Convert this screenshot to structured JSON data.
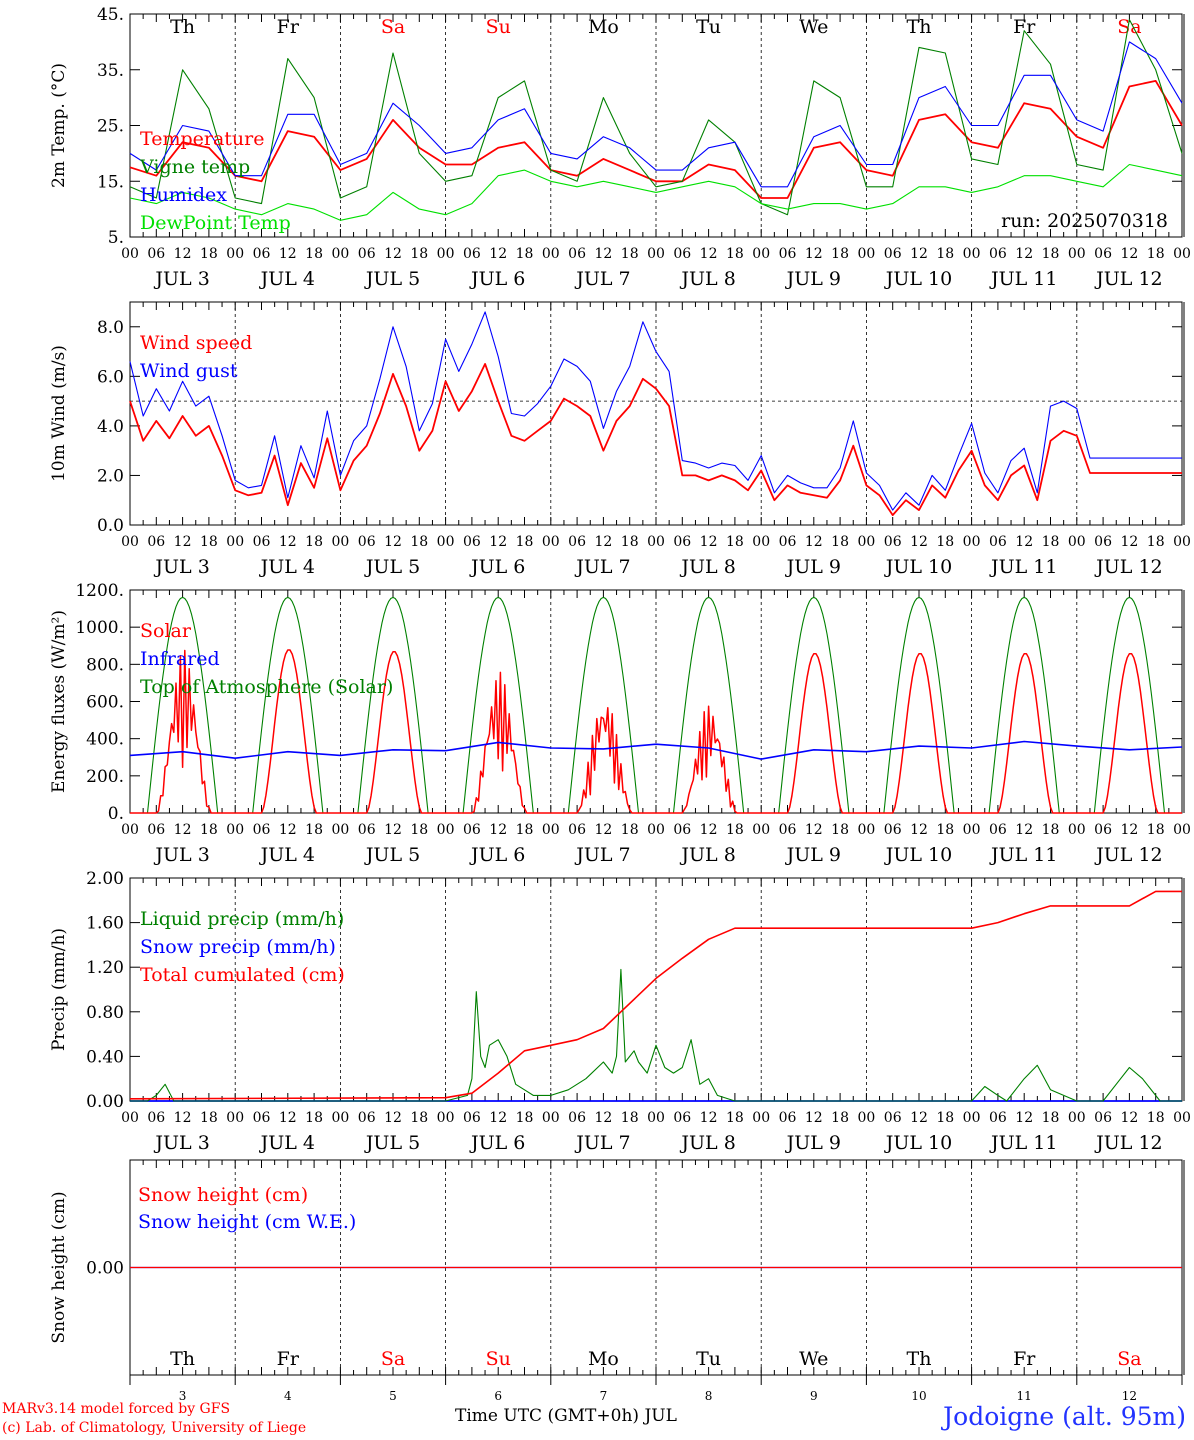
{
  "days": {
    "weekdays": [
      "Th",
      "Fr",
      "Sa",
      "Su",
      "Mo",
      "Tu",
      "We",
      "Th",
      "Fr",
      "Sa"
    ],
    "weekend_flags": [
      false,
      false,
      true,
      true,
      false,
      false,
      false,
      false,
      false,
      true
    ],
    "date_labels": [
      "JUL  3",
      "JUL  4",
      "JUL  5",
      "JUL  6",
      "JUL  7",
      "JUL  8",
      "JUL  9",
      "JUL 10",
      "JUL 11",
      "JUL 12"
    ],
    "day_numbers": [
      "3",
      "4",
      "5",
      "6",
      "7",
      "8",
      "9",
      "10",
      "11",
      "12"
    ],
    "hour_ticks": [
      "00",
      "06",
      "12",
      "18"
    ],
    "last_hour_tick": "00"
  },
  "colors": {
    "red": "#ff0000",
    "blue": "#0000ff",
    "darkgreen": "#008000",
    "lightgreen": "#00e000"
  },
  "chart_data": [
    {
      "type": "line",
      "ylabel": "2m Temp. (°C)",
      "ylim": [
        5,
        45
      ],
      "yticks": [
        "45.",
        "35.",
        "25.",
        "15.",
        "5."
      ],
      "yticks_values": [
        45,
        35,
        25,
        15,
        5
      ],
      "annotation": "run: 2025070318",
      "x_unit": "hours since JUL 3 00 UTC",
      "series": [
        {
          "name": "Temperature",
          "color": "#ff0000",
          "x": [
            0,
            6,
            12,
            18,
            24,
            30,
            36,
            42,
            48,
            54,
            60,
            66,
            72,
            78,
            84,
            90,
            96,
            102,
            108,
            114,
            120,
            126,
            132,
            138,
            144,
            150,
            156,
            162,
            168,
            174,
            180,
            186,
            192,
            198,
            204,
            210,
            216,
            222,
            228,
            234,
            240
          ],
          "y": [
            17.5,
            16,
            22,
            21,
            16,
            15,
            24,
            23,
            17,
            19,
            26,
            21,
            18,
            18,
            21,
            22,
            17,
            16,
            19,
            17,
            15,
            15,
            18,
            17,
            12,
            12,
            21,
            22,
            17,
            16,
            26,
            27,
            22,
            21,
            29,
            28,
            23,
            21,
            32,
            33,
            25
          ]
        },
        {
          "name": "Vigne temp",
          "color": "#008000",
          "x": [
            0,
            6,
            12,
            18,
            24,
            30,
            36,
            42,
            48,
            54,
            60,
            66,
            72,
            78,
            84,
            90,
            96,
            102,
            108,
            114,
            120,
            126,
            132,
            138,
            144,
            150,
            156,
            162,
            168,
            174,
            180,
            186,
            192,
            198,
            204,
            210,
            216,
            222,
            228,
            234,
            240
          ],
          "y": [
            14,
            12,
            35,
            28,
            12,
            11,
            37,
            30,
            12,
            14,
            38,
            20,
            15,
            16,
            30,
            33,
            17,
            15,
            30,
            20,
            14,
            15,
            26,
            22,
            11,
            9,
            33,
            30,
            14,
            14,
            39,
            38,
            19,
            18,
            42,
            36,
            18,
            17,
            44,
            35,
            20
          ]
        },
        {
          "name": "Humidex",
          "color": "#0000ff",
          "x": [
            0,
            6,
            12,
            18,
            24,
            30,
            36,
            42,
            48,
            54,
            60,
            66,
            72,
            78,
            84,
            90,
            96,
            102,
            108,
            114,
            120,
            126,
            132,
            138,
            144,
            150,
            156,
            162,
            168,
            174,
            180,
            186,
            192,
            198,
            204,
            210,
            216,
            222,
            228,
            234,
            240
          ],
          "y": [
            20,
            17,
            25,
            24,
            16,
            16,
            27,
            27,
            18,
            20,
            29,
            25,
            20,
            21,
            26,
            28,
            20,
            19,
            23,
            21,
            17,
            17,
            21,
            22,
            14,
            14,
            23,
            25,
            18,
            18,
            30,
            32,
            25,
            25,
            34,
            34,
            26,
            24,
            40,
            37,
            29
          ]
        },
        {
          "name": "DewPoint Temp",
          "color": "#00e000",
          "x": [
            0,
            6,
            12,
            18,
            24,
            30,
            36,
            42,
            48,
            54,
            60,
            66,
            72,
            78,
            84,
            90,
            96,
            102,
            108,
            114,
            120,
            126,
            132,
            138,
            144,
            150,
            156,
            162,
            168,
            174,
            180,
            186,
            192,
            198,
            204,
            210,
            216,
            222,
            228,
            234,
            240
          ],
          "y": [
            12,
            11,
            13,
            12,
            10,
            9,
            11,
            10,
            8,
            9,
            13,
            10,
            9,
            11,
            16,
            17,
            15,
            14,
            15,
            14,
            13,
            14,
            15,
            14,
            11,
            10,
            11,
            11,
            10,
            11,
            14,
            14,
            13,
            14,
            16,
            16,
            15,
            14,
            18,
            17,
            16
          ]
        }
      ]
    },
    {
      "type": "line",
      "ylabel": "10m Wind (m/s)",
      "ylim": [
        0,
        9
      ],
      "yticks": [
        "8.0",
        "6.0",
        "4.0",
        "2.0",
        "0.0"
      ],
      "yticks_values": [
        8,
        6,
        4,
        2,
        0
      ],
      "reference_line": 5,
      "x_unit": "hours since JUL 3 00 UTC",
      "series": [
        {
          "name": "Wind speed",
          "color": "#ff0000",
          "x": [
            0,
            3,
            6,
            9,
            12,
            15,
            18,
            21,
            24,
            27,
            30,
            33,
            36,
            39,
            42,
            45,
            48,
            51,
            54,
            57,
            60,
            63,
            66,
            69,
            72,
            75,
            78,
            81,
            84,
            87,
            90,
            93,
            96,
            99,
            102,
            105,
            108,
            111,
            114,
            117,
            120,
            123,
            126,
            129,
            132,
            135,
            138,
            141,
            144,
            147,
            150,
            153,
            156,
            159,
            162,
            165,
            168,
            171,
            174,
            177,
            180,
            183,
            186,
            189,
            192,
            195,
            198,
            201,
            204,
            207,
            210,
            213,
            216,
            219,
            222,
            225,
            228,
            231,
            234,
            237,
            240
          ],
          "y": [
            5.0,
            3.4,
            4.2,
            3.5,
            4.4,
            3.6,
            4.0,
            2.8,
            1.4,
            1.2,
            1.3,
            2.8,
            0.8,
            2.5,
            1.5,
            3.5,
            1.4,
            2.6,
            3.2,
            4.5,
            6.1,
            4.8,
            3.0,
            3.8,
            5.8,
            4.6,
            5.4,
            6.5,
            5.0,
            3.6,
            3.4,
            3.8,
            4.2,
            5.1,
            4.8,
            4.4,
            3.0,
            4.2,
            4.8,
            5.9,
            5.5,
            4.8,
            2.0,
            2.0,
            1.8,
            2.0,
            1.8,
            1.4,
            2.2,
            1.0,
            1.6,
            1.3,
            1.2,
            1.1,
            1.8,
            3.2,
            1.6,
            1.2,
            0.4,
            1.0,
            0.6,
            1.6,
            1.1,
            2.2,
            3.0,
            1.6,
            1.0,
            2.0,
            2.4,
            1.0,
            3.4,
            3.8,
            3.6,
            2.1,
            2.1,
            2.1,
            2.1,
            2.1,
            2.1,
            2.1,
            2.1
          ]
        },
        {
          "name": "Wind gust",
          "color": "#0000ff",
          "x": [
            0,
            3,
            6,
            9,
            12,
            15,
            18,
            21,
            24,
            27,
            30,
            33,
            36,
            39,
            42,
            45,
            48,
            51,
            54,
            57,
            60,
            63,
            66,
            69,
            72,
            75,
            78,
            81,
            84,
            87,
            90,
            93,
            96,
            99,
            102,
            105,
            108,
            111,
            114,
            117,
            120,
            123,
            126,
            129,
            132,
            135,
            138,
            141,
            144,
            147,
            150,
            153,
            156,
            159,
            162,
            165,
            168,
            171,
            174,
            177,
            180,
            183,
            186,
            189,
            192,
            195,
            198,
            201,
            204,
            207,
            210,
            213,
            216,
            219,
            222,
            225,
            228,
            231,
            234,
            237,
            240
          ],
          "y": [
            6.6,
            4.4,
            5.5,
            4.6,
            5.8,
            4.8,
            5.2,
            3.6,
            1.8,
            1.5,
            1.6,
            3.6,
            1.1,
            3.2,
            1.9,
            4.6,
            2.0,
            3.4,
            4.0,
            5.9,
            8.0,
            6.4,
            3.8,
            4.9,
            7.5,
            6.2,
            7.3,
            8.6,
            6.8,
            4.5,
            4.4,
            4.9,
            5.6,
            6.7,
            6.4,
            5.8,
            3.9,
            5.4,
            6.4,
            8.2,
            7.0,
            6.2,
            2.6,
            2.5,
            2.3,
            2.5,
            2.4,
            1.8,
            2.8,
            1.3,
            2.0,
            1.7,
            1.5,
            1.5,
            2.3,
            4.2,
            2.1,
            1.6,
            0.6,
            1.3,
            0.8,
            2.0,
            1.4,
            2.8,
            4.1,
            2.1,
            1.3,
            2.6,
            3.1,
            1.3,
            4.8,
            5.0,
            4.7,
            2.7,
            2.7,
            2.7,
            2.7,
            2.7,
            2.7,
            2.7,
            2.7
          ]
        }
      ]
    },
    {
      "type": "line",
      "ylabel": "Energy fluxes (W/m²)",
      "ylim": [
        0,
        1200
      ],
      "yticks": [
        "1200.",
        "1000.",
        "800.",
        "600.",
        "400.",
        "200.",
        "0."
      ],
      "yticks_values": [
        1200,
        1000,
        800,
        600,
        400,
        200,
        0
      ],
      "x_unit": "hours since JUL 3 00 UTC",
      "solar_peaks": [
        880,
        880,
        870,
        760,
        640,
        590,
        860,
        860,
        860,
        860
      ],
      "series": [
        {
          "name": "Solar",
          "color": "#ff0000",
          "derived_from": "solar_peaks"
        },
        {
          "name": "Infrared",
          "color": "#0000ff",
          "x": [
            0,
            12,
            24,
            36,
            48,
            60,
            72,
            84,
            96,
            108,
            120,
            132,
            144,
            156,
            168,
            180,
            192,
            204,
            216,
            228,
            240
          ],
          "y": [
            310,
            330,
            295,
            330,
            310,
            340,
            335,
            380,
            350,
            345,
            370,
            350,
            290,
            340,
            330,
            360,
            350,
            385,
            360,
            340,
            355
          ]
        },
        {
          "name": "Top of Atmosphere (Solar)",
          "color": "#008000",
          "peak": 1160
        }
      ]
    },
    {
      "type": "line",
      "ylabel": "Precip (mm/h)",
      "ylim": [
        0,
        2
      ],
      "yticks": [
        "2.00",
        "1.60",
        "1.20",
        "0.80",
        "0.40",
        "0.00"
      ],
      "yticks_values": [
        2.0,
        1.6,
        1.2,
        0.8,
        0.4,
        0.0
      ],
      "x_unit": "hours since JUL 3 00 UTC",
      "series": [
        {
          "name": "Liquid precip (mm/h)",
          "color": "#008000",
          "x": [
            0,
            4,
            6,
            8,
            10,
            72,
            77,
            78,
            79,
            80,
            81,
            82,
            84,
            86,
            88,
            90,
            92,
            96,
            100,
            104,
            108,
            110,
            111,
            112,
            113,
            114,
            115,
            116,
            118,
            120,
            122,
            124,
            126,
            128,
            130,
            132,
            134,
            138,
            144,
            192,
            195,
            198,
            200,
            204,
            207,
            210,
            216,
            222,
            226,
            228,
            231,
            235,
            240
          ],
          "y": [
            0,
            0,
            0.05,
            0.15,
            0,
            0,
            0.05,
            0.2,
            0.98,
            0.4,
            0.3,
            0.5,
            0.55,
            0.4,
            0.15,
            0.1,
            0.05,
            0.05,
            0.1,
            0.2,
            0.35,
            0.25,
            0.4,
            1.18,
            0.35,
            0.4,
            0.45,
            0.35,
            0.25,
            0.5,
            0.3,
            0.25,
            0.3,
            0.55,
            0.15,
            0.2,
            0.05,
            0,
            0,
            0,
            0.13,
            0.05,
            0,
            0.2,
            0.32,
            0.1,
            0,
            0,
            0.2,
            0.3,
            0.2,
            0,
            0
          ]
        },
        {
          "name": "Snow precip (mm/h)",
          "color": "#0000ff",
          "x": [
            0,
            240
          ],
          "y": [
            0,
            0
          ]
        },
        {
          "name": "Total cumulated (cm)",
          "color": "#ff0000",
          "x": [
            0,
            72,
            78,
            84,
            90,
            96,
            102,
            108,
            112,
            116,
            120,
            126,
            132,
            138,
            144,
            192,
            198,
            204,
            210,
            216,
            228,
            234,
            240
          ],
          "y": [
            0.02,
            0.03,
            0.07,
            0.25,
            0.45,
            0.5,
            0.55,
            0.65,
            0.8,
            0.95,
            1.1,
            1.28,
            1.45,
            1.55,
            1.55,
            1.55,
            1.6,
            1.68,
            1.75,
            1.75,
            1.75,
            1.88,
            1.88
          ]
        }
      ]
    },
    {
      "type": "line",
      "ylabel": "Snow height (cm)",
      "ylim": [
        -1,
        1
      ],
      "yticks": [
        "0.00"
      ],
      "yticks_values": [
        0
      ],
      "x_unit": "hours since JUL 3 00 UTC",
      "series": [
        {
          "name": "Snow height (cm)",
          "color": "#ff0000",
          "x": [
            0,
            240
          ],
          "y": [
            0,
            0
          ]
        },
        {
          "name": "Snow height (cm W.E.)",
          "color": "#0000ff",
          "x": [
            0,
            240
          ],
          "y": [
            0,
            0
          ]
        }
      ]
    }
  ],
  "footer": {
    "model_line": "MARv3.14 model forced by GFS",
    "lab_line": "(c) Lab. of Climatology, University of Liege",
    "xaxis_title": "Time UTC (GMT+0h) JUL",
    "location": "Jodoigne (alt. 95m)"
  }
}
